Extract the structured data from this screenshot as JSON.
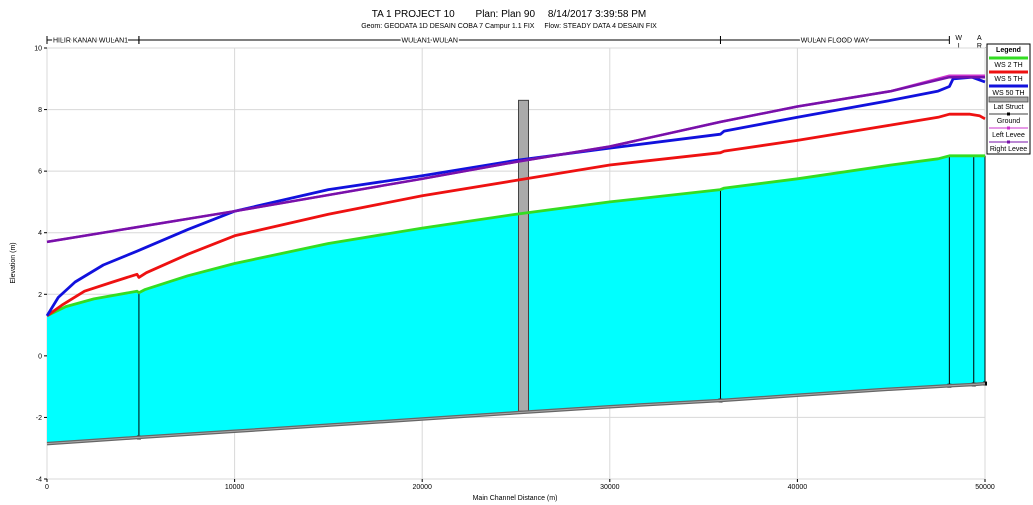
{
  "chart_data": {
    "type": "line",
    "title_parts": {
      "project": "TA 1 PROJECT 10",
      "plan": "Plan: Plan 90",
      "datetime": "8/14/2017  3:39:58 PM"
    },
    "subtitle_parts": {
      "geom": "Geom: GEODATA 1D DESAIN COBA 7 Campur 1.1 FIX",
      "flow": "Flow: STEADY DATA 4 DESAIN FIX"
    },
    "xlabel": "Main Channel Distance (m)",
    "ylabel": "Elevation (m)",
    "xlim": [
      0,
      50000
    ],
    "ylim": [
      -4,
      10
    ],
    "x_ticks": [
      "0",
      "10000",
      "20000",
      "30000",
      "40000",
      "50000"
    ],
    "y_ticks": [
      "-4",
      "-2",
      "0",
      "2",
      "4",
      "6",
      "8",
      "10"
    ],
    "grid": true,
    "legend_position": "right",
    "legend_title": "Legend",
    "reaches": [
      {
        "label": "HILIR KANAN WULAN1",
        "x_start": 0,
        "x_end": 4900
      },
      {
        "label": "WULAN1 WULAN",
        "x_start": 4900,
        "x_end": 35900
      },
      {
        "label": "WULAN FLOOD WAY",
        "x_start": 35900,
        "x_end": 48100
      }
    ],
    "vertical_reach_labels": [
      {
        "text": "WILALNG ARAH HULU",
        "x": 48600
      },
      {
        "text": "ARAH HULU ARAH HULU",
        "x": 49700
      }
    ],
    "series": [
      {
        "name": "WS  2 TH",
        "color": "#33dd22",
        "points": [
          [
            0,
            1.3
          ],
          [
            1000,
            1.6
          ],
          [
            2500,
            1.85
          ],
          [
            4800,
            2.1
          ],
          [
            4900,
            2.05
          ],
          [
            5200,
            2.15
          ],
          [
            7500,
            2.6
          ],
          [
            10000,
            3.0
          ],
          [
            15000,
            3.65
          ],
          [
            20000,
            4.15
          ],
          [
            25000,
            4.6
          ],
          [
            30000,
            5.0
          ],
          [
            35900,
            5.4
          ],
          [
            36100,
            5.45
          ],
          [
            40000,
            5.75
          ],
          [
            45000,
            6.2
          ],
          [
            47500,
            6.4
          ],
          [
            48100,
            6.5
          ],
          [
            48200,
            6.5
          ],
          [
            49400,
            6.5
          ],
          [
            50000,
            6.5
          ]
        ]
      },
      {
        "name": "WS  5 TH",
        "color": "#ee1111",
        "points": [
          [
            0,
            1.3
          ],
          [
            800,
            1.65
          ],
          [
            2000,
            2.1
          ],
          [
            3500,
            2.4
          ],
          [
            4800,
            2.65
          ],
          [
            4900,
            2.55
          ],
          [
            5300,
            2.7
          ],
          [
            7500,
            3.3
          ],
          [
            10000,
            3.9
          ],
          [
            15000,
            4.6
          ],
          [
            20000,
            5.2
          ],
          [
            25000,
            5.7
          ],
          [
            30000,
            6.2
          ],
          [
            35900,
            6.6
          ],
          [
            36100,
            6.65
          ],
          [
            40000,
            7.0
          ],
          [
            45000,
            7.5
          ],
          [
            47500,
            7.75
          ],
          [
            48100,
            7.85
          ],
          [
            48300,
            7.85
          ],
          [
            49200,
            7.85
          ],
          [
            49700,
            7.8
          ],
          [
            50000,
            7.7
          ]
        ]
      },
      {
        "name": "WS  50 TH",
        "color": "#1111dd",
        "points": [
          [
            0,
            1.3
          ],
          [
            600,
            1.9
          ],
          [
            1500,
            2.4
          ],
          [
            3000,
            2.95
          ],
          [
            4800,
            3.4
          ],
          [
            5000,
            3.45
          ],
          [
            7500,
            4.1
          ],
          [
            10000,
            4.7
          ],
          [
            15000,
            5.4
          ],
          [
            20000,
            5.85
          ],
          [
            25000,
            6.35
          ],
          [
            30000,
            6.75
          ],
          [
            35900,
            7.2
          ],
          [
            36100,
            7.3
          ],
          [
            40000,
            7.75
          ],
          [
            45000,
            8.3
          ],
          [
            47500,
            8.6
          ],
          [
            48100,
            8.75
          ],
          [
            48300,
            9.0
          ],
          [
            49300,
            9.05
          ],
          [
            50000,
            8.9
          ]
        ]
      },
      {
        "name": "Ground",
        "color": "#666666",
        "points": [
          [
            0,
            -2.85
          ],
          [
            4900,
            -2.65
          ],
          [
            10000,
            -2.45
          ],
          [
            20000,
            -2.05
          ],
          [
            25000,
            -1.85
          ],
          [
            30000,
            -1.65
          ],
          [
            35900,
            -1.45
          ],
          [
            40000,
            -1.28
          ],
          [
            45000,
            -1.08
          ],
          [
            48100,
            -0.97
          ],
          [
            49400,
            -0.93
          ],
          [
            50000,
            -0.9
          ]
        ]
      },
      {
        "name": "Left Levee",
        "color": "#cc33cc",
        "points": [
          [
            0,
            3.7
          ],
          [
            10000,
            4.7
          ],
          [
            20000,
            5.75
          ],
          [
            25000,
            6.3
          ],
          [
            30000,
            6.8
          ],
          [
            35900,
            7.6
          ],
          [
            40000,
            8.1
          ],
          [
            45000,
            8.6
          ],
          [
            48100,
            9.1
          ],
          [
            49400,
            9.1
          ],
          [
            50000,
            9.1
          ]
        ]
      },
      {
        "name": "Right Levee",
        "color": "#7711aa",
        "points": [
          [
            0,
            3.7
          ],
          [
            10000,
            4.7
          ],
          [
            20000,
            5.75
          ],
          [
            25000,
            6.3
          ],
          [
            30000,
            6.8
          ],
          [
            35900,
            7.6
          ],
          [
            40000,
            8.1
          ],
          [
            45000,
            8.6
          ],
          [
            48100,
            9.05
          ],
          [
            49400,
            9.05
          ],
          [
            50000,
            9.05
          ]
        ]
      }
    ],
    "lat_struct": {
      "name": "Lat Struct",
      "x": 25400,
      "top": 8.3,
      "bottom": -1.8,
      "color": "#aaaaaa"
    },
    "legend_items": [
      {
        "name": "WS  2 TH",
        "color": "#33dd22",
        "kind": "line"
      },
      {
        "name": "WS  5 TH",
        "color": "#ee1111",
        "kind": "line"
      },
      {
        "name": "WS  50 TH",
        "color": "#1111dd",
        "kind": "line"
      },
      {
        "name": "Lat Struct",
        "color": "#aaaaaa",
        "kind": "rect"
      },
      {
        "name": "Ground",
        "color": "#666666",
        "kind": "ground"
      },
      {
        "name": "Left Levee",
        "color": "#cc33cc",
        "kind": "marker"
      },
      {
        "name": "Right Levee",
        "color": "#7711aa",
        "kind": "marker"
      }
    ],
    "water_fill_color": "#00ffff",
    "junction_lines_x": [
      4900,
      35900,
      48100,
      49400,
      50000
    ]
  }
}
